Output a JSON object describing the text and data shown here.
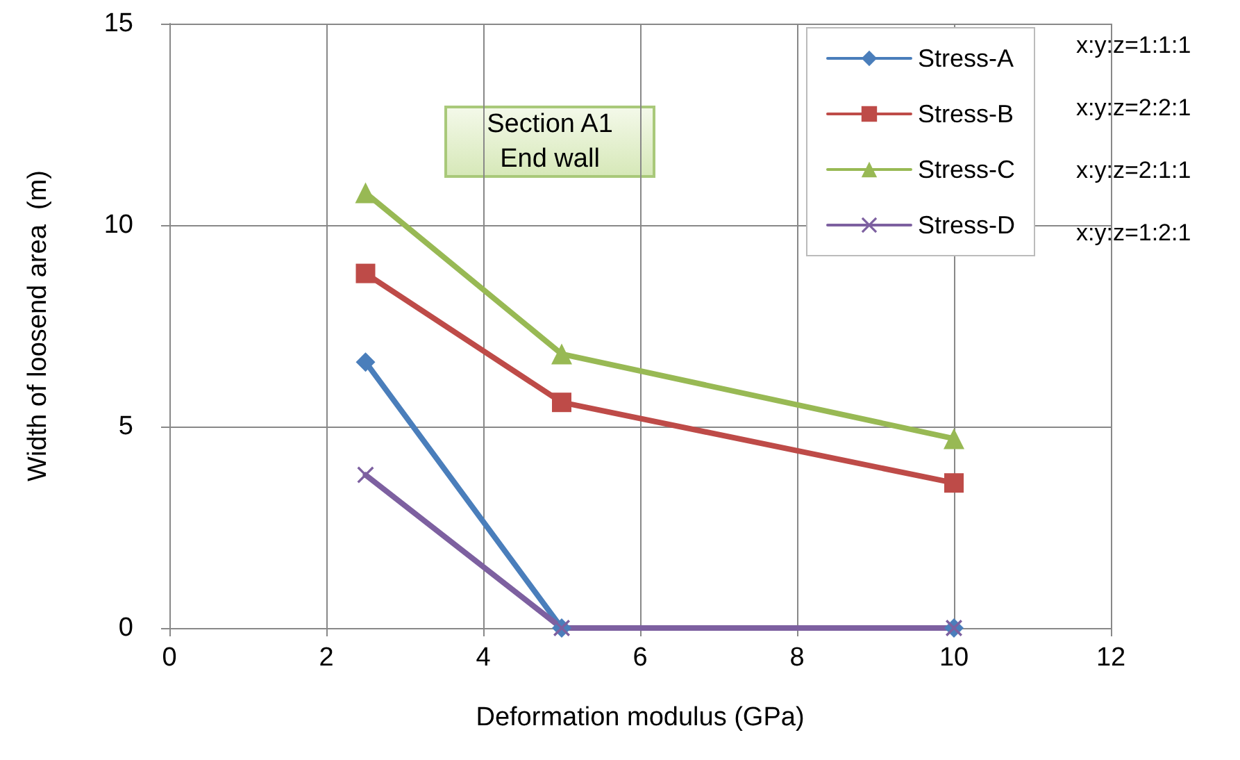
{
  "chart_data": {
    "type": "line",
    "xlabel": "Deformation modulus (GPa)",
    "ylabel": "Width of loosend area  (m)",
    "x": [
      2.5,
      5,
      10
    ],
    "series": [
      {
        "name": "Stress-A",
        "color": "#4a7ebb",
        "marker": "diamond",
        "values": [
          6.6,
          0,
          0
        ]
      },
      {
        "name": "Stress-B",
        "color": "#be4b48",
        "marker": "square",
        "values": [
          8.8,
          5.6,
          3.6
        ]
      },
      {
        "name": "Stress-C",
        "color": "#98b954",
        "marker": "triangle",
        "values": [
          10.8,
          6.8,
          4.7
        ]
      },
      {
        "name": "Stress-D",
        "color": "#7d60a0",
        "marker": "cross",
        "values": [
          3.8,
          0,
          0
        ]
      }
    ],
    "xlim": [
      0,
      12
    ],
    "xticks": [
      0,
      2,
      4,
      6,
      8,
      10,
      12
    ],
    "ylim": [
      0,
      15
    ],
    "yticks": [
      0,
      5,
      10,
      15
    ],
    "grid": true,
    "legend": "top right",
    "line_style": "solid",
    "annotations": [
      "Section A1\nEnd wall",
      "x:y:z=1:1:1",
      "x:y:z=2:2:1",
      "x:y:z=2:1:1",
      "x:y:z=1:2:1"
    ]
  }
}
